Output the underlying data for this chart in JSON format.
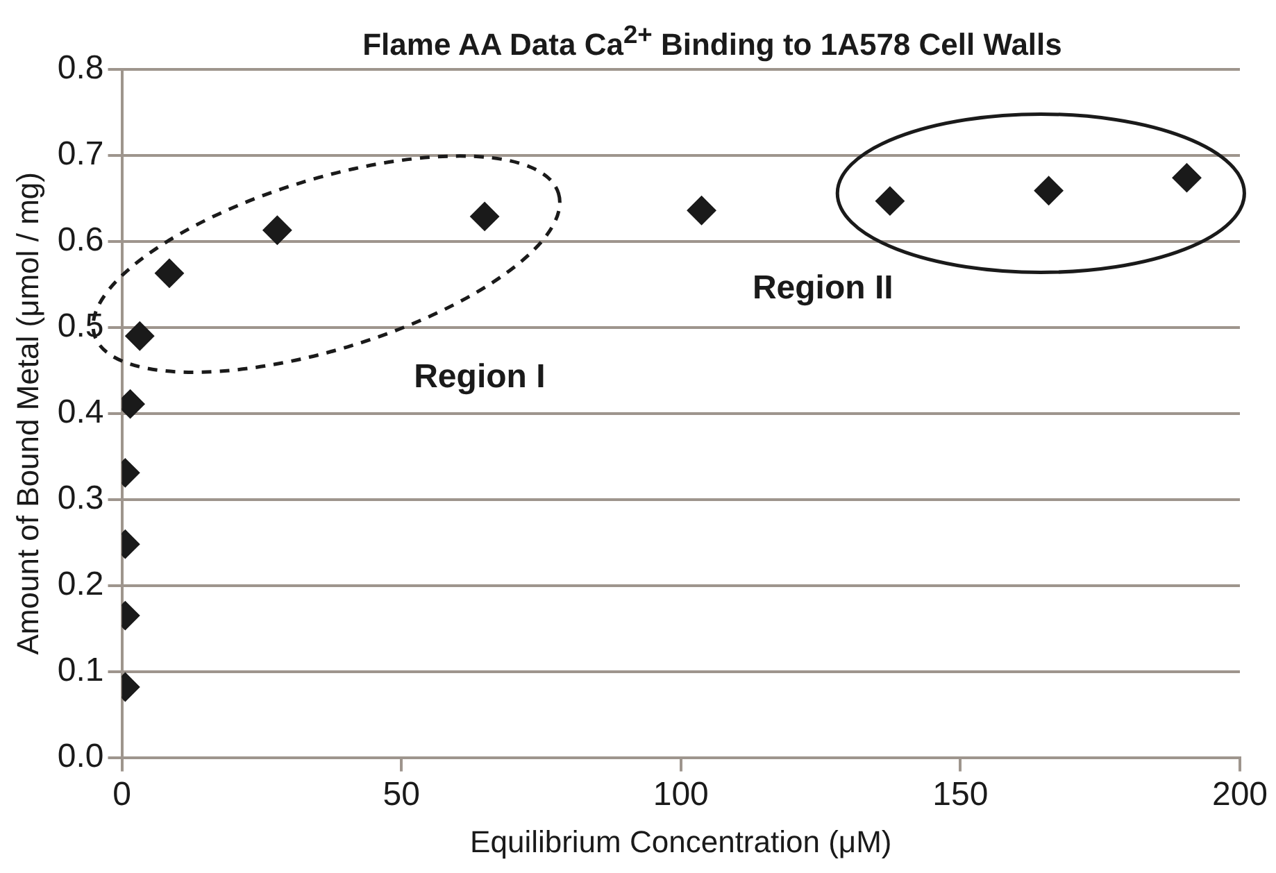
{
  "chart_data": {
    "type": "scatter",
    "title": "Flame AA Data Ca$^{2+}$ Binding to 1A578 Cell Walls",
    "xlabel": "Equilibrium Concentration (μM)",
    "ylabel": "Amount of Bound Metal (μmol / mg)",
    "x": [
      0.6,
      0.6,
      0.6,
      0.6,
      1.5,
      3.2,
      8.5,
      27.8,
      64.9,
      103.7,
      137.4,
      165.8,
      190.5
    ],
    "values": [
      0.082,
      0.165,
      0.248,
      0.331,
      0.411,
      0.49,
      0.563,
      0.613,
      0.629,
      0.636,
      0.647,
      0.659,
      0.674
    ],
    "color": "#1a1a1a",
    "marker": "diamond",
    "xlim": [
      0,
      200
    ],
    "xticks": [
      0,
      50,
      100,
      150,
      200
    ],
    "ylim": [
      0,
      0.8
    ],
    "yticks": [
      {
        "value": 0,
        "label": "0.0"
      },
      0.1,
      0.2,
      0.3,
      0.4,
      0.5,
      0.6,
      0.7,
      0.8
    ],
    "grid": "y",
    "legend": false,
    "annotations": [
      "Region I",
      "Region II"
    ]
  }
}
